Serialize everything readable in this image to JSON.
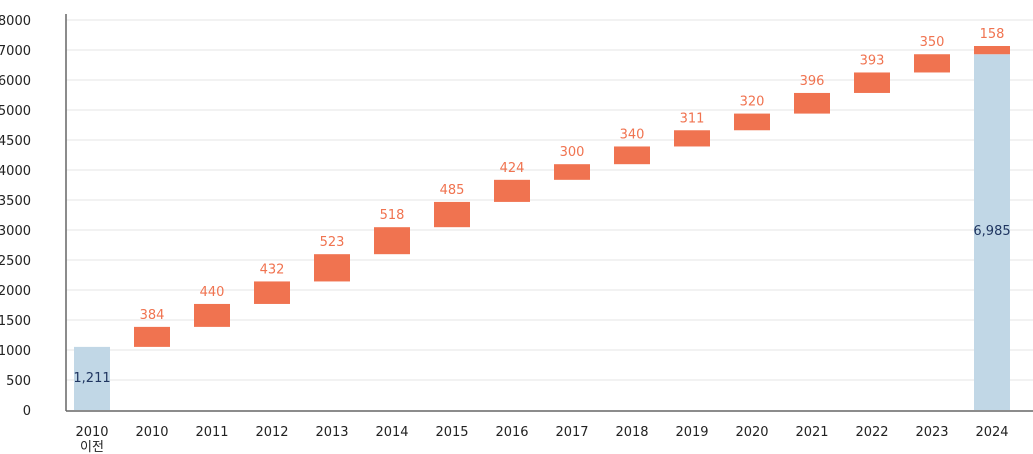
{
  "chart_data": {
    "type": "waterfall",
    "title": "",
    "xlabel": "",
    "ylabel": "",
    "y_tick_labels": [
      "0",
      "500",
      "1000",
      "1500",
      "2000",
      "2500",
      "3000",
      "3500",
      "4000",
      "4500",
      "5000",
      "6000",
      "7000",
      "8000"
    ],
    "grid": true,
    "categories": [
      "2010\n이전",
      "2010",
      "2011",
      "2012",
      "2013",
      "2014",
      "2015",
      "2016",
      "2017",
      "2018",
      "2019",
      "2020",
      "2021",
      "2022",
      "2023",
      "2024"
    ],
    "base": {
      "category": "2010\n이전",
      "value": 1211,
      "label": "1,211"
    },
    "increments": [
      384,
      440,
      432,
      523,
      518,
      485,
      424,
      300,
      340,
      311,
      320,
      396,
      393,
      350,
      158
    ],
    "increment_labels": [
      "384",
      "440",
      "432",
      "523",
      "518",
      "485",
      "424",
      "300",
      "340",
      "311",
      "320",
      "396",
      "393",
      "350",
      "158"
    ],
    "total": {
      "category": "2024",
      "value": 6985,
      "label": "6,985"
    },
    "colors": {
      "base": "#c1d7e6",
      "increment": "#f07350",
      "increment_text": "#f07350",
      "total_text": "#1f3560",
      "grid": "#e6e6e6",
      "axis": "#666666"
    }
  }
}
